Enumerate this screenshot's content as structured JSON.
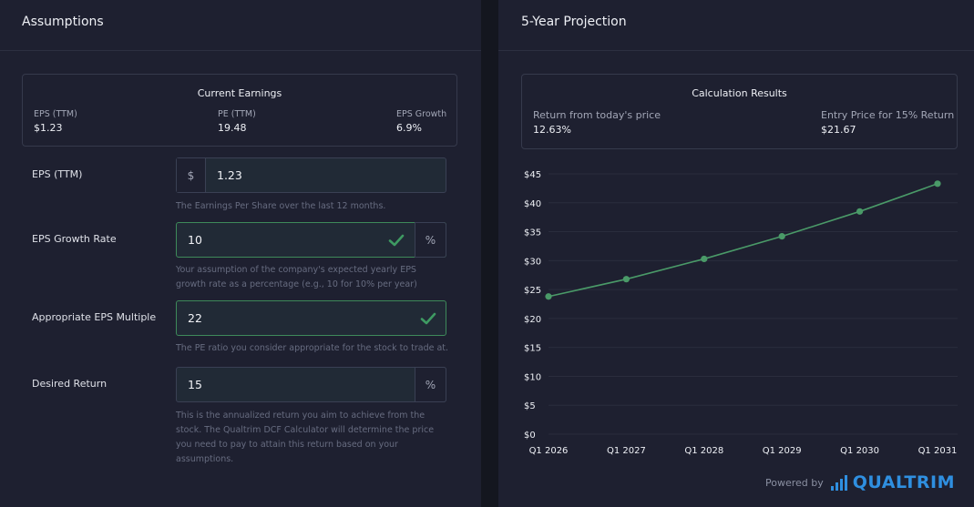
{
  "left_panel": {
    "title": "Assumptions",
    "current_earnings": {
      "title": "Current Earnings",
      "metrics": [
        {
          "label": "EPS (TTM)",
          "value": "$1.23"
        },
        {
          "label": "PE (TTM)",
          "value": "19.48"
        },
        {
          "label": "EPS Growth",
          "value": "6.9%"
        }
      ]
    },
    "fields": {
      "eps": {
        "label": "EPS (TTM)",
        "prefix": "$",
        "value": "1.23",
        "help": "The Earnings Per Share over the last 12 months."
      },
      "growth": {
        "label": "EPS Growth Rate",
        "value": "10",
        "suffix": "%",
        "help": "Your assumption of the company's expected yearly EPS growth rate as a percentage (e.g., 10 for 10% per year)"
      },
      "multiple": {
        "label": "Appropriate EPS Multiple",
        "value": "22",
        "help": "The PE ratio you consider appropriate for the stock to trade at."
      },
      "return": {
        "label": "Desired Return",
        "value": "15",
        "suffix": "%",
        "help": "This is the annualized return you aim to achieve from the stock. The Qualtrim DCF Calculator will determine the price you need to pay to attain this return based on your assumptions."
      }
    }
  },
  "right_panel": {
    "title": "5-Year Projection",
    "results": {
      "title": "Calculation Results",
      "metrics": [
        {
          "label": "Return from today's price",
          "value": "12.63%"
        },
        {
          "label": "Entry Price for 15% Return",
          "value": "$21.67"
        }
      ]
    },
    "powered_by": "Powered by",
    "brand": "QUALTRIM"
  },
  "colors": {
    "panel": "#1e2030",
    "valid_border": "#3e8a5a",
    "line": "#4a9a68",
    "brand": "#2f8fe0"
  },
  "icons": {
    "valid": "check-icon",
    "logo": "bar-chart-icon"
  },
  "chart_data": {
    "type": "line",
    "categories": [
      "Q1 2026",
      "Q1 2027",
      "Q1 2028",
      "Q1 2029",
      "Q1 2030",
      "Q1 2031"
    ],
    "series": [
      {
        "values": [
          23.8,
          26.8,
          30.3,
          34.2,
          38.5,
          43.3
        ]
      }
    ],
    "yticks": [
      "$0",
      "$5",
      "$10",
      "$15",
      "$20",
      "$25",
      "$30",
      "$35",
      "$40",
      "$45"
    ],
    "ylim": [
      0,
      45
    ],
    "grid": true,
    "legend": false
  }
}
